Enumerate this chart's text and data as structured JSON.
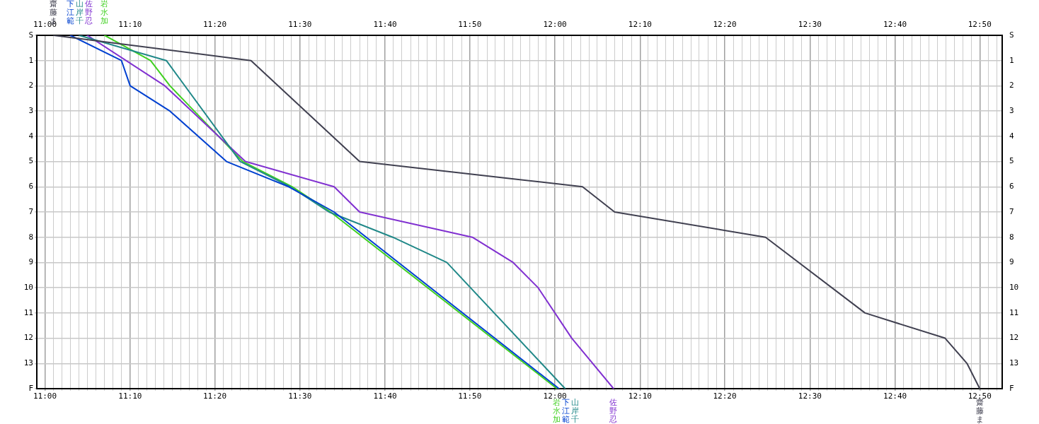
{
  "chart_data": {
    "type": "line",
    "series": [
      {
        "name": "齋藤ま",
        "color": "#404050",
        "x": [
          11.017,
          11.404,
          11.617,
          12.054,
          12.117,
          12.413,
          12.608,
          12.765,
          12.808,
          12.833
        ],
        "values": [
          0,
          1,
          5,
          6,
          7,
          8,
          11,
          12,
          13,
          14
        ]
      },
      {
        "name": "下江範",
        "color": "#0040d0",
        "x": [
          11.05,
          11.15,
          11.167,
          11.245,
          11.356,
          11.478,
          11.567,
          12.008
        ],
        "values": [
          0,
          1,
          2,
          3,
          5,
          6,
          7,
          14
        ]
      },
      {
        "name": "山岸千",
        "color": "#208888",
        "x": [
          11.067,
          11.238,
          11.383,
          11.481,
          11.557,
          11.682,
          11.788,
          12.02
        ],
        "values": [
          0,
          1,
          5,
          6,
          7,
          8,
          9,
          14
        ]
      },
      {
        "name": "佐野忍",
        "color": "#8030d0",
        "x": [
          11.083,
          11.235,
          11.393,
          11.567,
          11.617,
          11.838,
          11.918,
          11.967,
          12.033,
          12.115
        ],
        "values": [
          0,
          2,
          5,
          6,
          7,
          8,
          9,
          10,
          12,
          14
        ]
      },
      {
        "name": "岩水加",
        "color": "#40d020",
        "x": [
          11.117,
          11.207,
          11.245,
          11.388,
          11.485,
          11.56,
          12.004
        ],
        "values": [
          0,
          1,
          2,
          5,
          6,
          7,
          14
        ]
      }
    ],
    "xlim": [
      10.984,
      12.877
    ],
    "xticks": [
      {
        "value": 11,
        "label": "11:00"
      },
      {
        "value": 11.017,
        "label": null
      },
      {
        "value": 11.033,
        "label": null
      },
      {
        "value": 11.05,
        "label": null
      },
      {
        "value": 11.067,
        "label": null
      },
      {
        "value": 11.083,
        "label": null
      },
      {
        "value": 11.1,
        "label": null
      },
      {
        "value": 11.117,
        "label": null
      },
      {
        "value": 11.133,
        "label": null
      },
      {
        "value": 11.15,
        "label": null
      },
      {
        "value": 11.167,
        "label": "11:10"
      },
      {
        "value": 11.183,
        "label": null
      },
      {
        "value": 11.2,
        "label": null
      },
      {
        "value": 11.217,
        "label": null
      },
      {
        "value": 11.233,
        "label": null
      },
      {
        "value": 11.25,
        "label": null
      },
      {
        "value": 11.267,
        "label": null
      },
      {
        "value": 11.283,
        "label": null
      },
      {
        "value": 11.3,
        "label": null
      },
      {
        "value": 11.317,
        "label": null
      },
      {
        "value": 11.333,
        "label": "11:20"
      },
      {
        "value": 11.35,
        "label": null
      },
      {
        "value": 11.367,
        "label": null
      },
      {
        "value": 11.383,
        "label": null
      },
      {
        "value": 11.4,
        "label": null
      },
      {
        "value": 11.417,
        "label": null
      },
      {
        "value": 11.433,
        "label": null
      },
      {
        "value": 11.45,
        "label": null
      },
      {
        "value": 11.467,
        "label": null
      },
      {
        "value": 11.483,
        "label": null
      },
      {
        "value": 11.5,
        "label": "11:30"
      },
      {
        "value": 11.517,
        "label": null
      },
      {
        "value": 11.533,
        "label": null
      },
      {
        "value": 11.55,
        "label": null
      },
      {
        "value": 11.567,
        "label": null
      },
      {
        "value": 11.583,
        "label": null
      },
      {
        "value": 11.6,
        "label": null
      },
      {
        "value": 11.617,
        "label": null
      },
      {
        "value": 11.633,
        "label": null
      },
      {
        "value": 11.65,
        "label": null
      },
      {
        "value": 11.667,
        "label": "11:40"
      },
      {
        "value": 11.683,
        "label": null
      },
      {
        "value": 11.7,
        "label": null
      },
      {
        "value": 11.717,
        "label": null
      },
      {
        "value": 11.733,
        "label": null
      },
      {
        "value": 11.75,
        "label": null
      },
      {
        "value": 11.767,
        "label": null
      },
      {
        "value": 11.783,
        "label": null
      },
      {
        "value": 11.8,
        "label": null
      },
      {
        "value": 11.817,
        "label": null
      },
      {
        "value": 11.833,
        "label": "11:50"
      },
      {
        "value": 11.85,
        "label": null
      },
      {
        "value": 11.867,
        "label": null
      },
      {
        "value": 11.883,
        "label": null
      },
      {
        "value": 11.9,
        "label": null
      },
      {
        "value": 11.917,
        "label": null
      },
      {
        "value": 11.933,
        "label": null
      },
      {
        "value": 11.95,
        "label": null
      },
      {
        "value": 11.967,
        "label": null
      },
      {
        "value": 11.983,
        "label": null
      },
      {
        "value": 12,
        "label": "12:00"
      },
      {
        "value": 12.017,
        "label": null
      },
      {
        "value": 12.033,
        "label": null
      },
      {
        "value": 12.05,
        "label": null
      },
      {
        "value": 12.067,
        "label": null
      },
      {
        "value": 12.083,
        "label": null
      },
      {
        "value": 12.1,
        "label": null
      },
      {
        "value": 12.117,
        "label": null
      },
      {
        "value": 12.133,
        "label": null
      },
      {
        "value": 12.15,
        "label": null
      },
      {
        "value": 12.167,
        "label": "12:10"
      },
      {
        "value": 12.183,
        "label": null
      },
      {
        "value": 12.2,
        "label": null
      },
      {
        "value": 12.217,
        "label": null
      },
      {
        "value": 12.233,
        "label": null
      },
      {
        "value": 12.25,
        "label": null
      },
      {
        "value": 12.267,
        "label": null
      },
      {
        "value": 12.283,
        "label": null
      },
      {
        "value": 12.3,
        "label": null
      },
      {
        "value": 12.317,
        "label": null
      },
      {
        "value": 12.333,
        "label": "12:20"
      },
      {
        "value": 12.35,
        "label": null
      },
      {
        "value": 12.367,
        "label": null
      },
      {
        "value": 12.383,
        "label": null
      },
      {
        "value": 12.4,
        "label": null
      },
      {
        "value": 12.417,
        "label": null
      },
      {
        "value": 12.433,
        "label": null
      },
      {
        "value": 12.45,
        "label": null
      },
      {
        "value": 12.467,
        "label": null
      },
      {
        "value": 12.483,
        "label": null
      },
      {
        "value": 12.5,
        "label": "12:30"
      },
      {
        "value": 12.517,
        "label": null
      },
      {
        "value": 12.533,
        "label": null
      },
      {
        "value": 12.55,
        "label": null
      },
      {
        "value": 12.567,
        "label": null
      },
      {
        "value": 12.583,
        "label": null
      },
      {
        "value": 12.6,
        "label": null
      },
      {
        "value": 12.617,
        "label": null
      },
      {
        "value": 12.633,
        "label": null
      },
      {
        "value": 12.65,
        "label": null
      },
      {
        "value": 12.667,
        "label": "12:40"
      },
      {
        "value": 12.683,
        "label": null
      },
      {
        "value": 12.7,
        "label": null
      },
      {
        "value": 12.717,
        "label": null
      },
      {
        "value": 12.733,
        "label": null
      },
      {
        "value": 12.75,
        "label": null
      },
      {
        "value": 12.767,
        "label": null
      },
      {
        "value": 12.783,
        "label": null
      },
      {
        "value": 12.8,
        "label": null
      },
      {
        "value": 12.817,
        "label": null
      },
      {
        "value": 12.833,
        "label": "12:50"
      },
      {
        "value": 12.85,
        "label": null
      },
      {
        "value": 12.867,
        "label": null
      }
    ],
    "x2lim": [
      10.984,
      12.877
    ],
    "x2ticks": [
      {
        "value": 11,
        "label": "11:00"
      },
      {
        "value": 11.167,
        "label": "11:10"
      },
      {
        "value": 11.333,
        "label": "11:20"
      },
      {
        "value": 11.5,
        "label": "11:30"
      },
      {
        "value": 11.667,
        "label": "11:40"
      },
      {
        "value": 11.833,
        "label": "11:50"
      },
      {
        "value": 12,
        "label": "12:00"
      },
      {
        "value": 12.167,
        "label": "12:10"
      },
      {
        "value": 12.333,
        "label": "12:20"
      },
      {
        "value": 12.5,
        "label": "12:30"
      },
      {
        "value": 12.667,
        "label": "12:40"
      },
      {
        "value": 12.833,
        "label": "12:50"
      }
    ],
    "ylim": [
      14,
      0
    ],
    "yticks": [
      {
        "value": 0,
        "label": "S"
      },
      1,
      2,
      3,
      4,
      5,
      6,
      7,
      8,
      9,
      10,
      11,
      12,
      13,
      {
        "value": 14,
        "label": "F"
      }
    ],
    "y2lim": [
      14,
      0
    ],
    "y2ticks": [
      {
        "value": 0,
        "label": "S"
      },
      1,
      2,
      3,
      4,
      5,
      6,
      7,
      8,
      9,
      10,
      11,
      12,
      13,
      {
        "value": 14,
        "label": "F"
      }
    ],
    "grid": true
  }
}
